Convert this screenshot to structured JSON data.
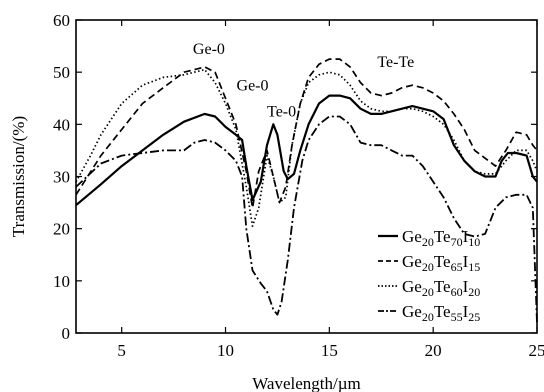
{
  "chart_data": {
    "type": "line",
    "xlabel": "Wavelength/µm",
    "ylabel": "Transmission/(%)",
    "xlim": [
      2.8,
      25
    ],
    "ylim": [
      0,
      60
    ],
    "xticks": [
      5,
      10,
      15,
      20,
      25
    ],
    "yticks": [
      0,
      10,
      20,
      30,
      40,
      50,
      60
    ],
    "grid": false,
    "legend_position": "bottom-right",
    "annotations": [
      {
        "text": "Ge-0",
        "x": 9.2,
        "y": 53.5
      },
      {
        "text": "Ge-0",
        "x": 11.3,
        "y": 46.5
      },
      {
        "text": "Te-0",
        "x": 12.7,
        "y": 41.5
      },
      {
        "text": "Te-Te",
        "x": 18.2,
        "y": 51.0
      }
    ],
    "series": [
      {
        "name": "Ge20Te70I10",
        "legend": {
          "p1": "Ge",
          "s1": "20",
          "p2": "Te",
          "s2": "70",
          "p3": "I",
          "s3": "10"
        },
        "style": "solid",
        "x": [
          2.8,
          4,
          5,
          6,
          7,
          8,
          9,
          9.5,
          10,
          10.5,
          10.8,
          11,
          11.3,
          11.7,
          12,
          12.3,
          12.5,
          12.8,
          13,
          13.3,
          13.6,
          14,
          14.5,
          15,
          15.5,
          16,
          16.5,
          17,
          17.5,
          18,
          18.5,
          19,
          19.5,
          20,
          20.5,
          21,
          21.5,
          22,
          22.5,
          23,
          23.3,
          23.6,
          24,
          24.5,
          24.8,
          25
        ],
        "values": [
          24.5,
          28.5,
          32,
          35,
          38,
          40.5,
          42,
          41.5,
          39.5,
          38,
          37,
          32,
          25.5,
          29,
          36,
          40,
          38,
          31,
          29.5,
          30.5,
          35,
          40,
          44,
          45.5,
          45.5,
          45,
          43,
          42,
          42,
          42.5,
          43,
          43.5,
          43,
          42.5,
          41,
          36,
          33,
          31,
          30,
          30,
          33,
          34.5,
          34.5,
          34,
          30,
          29
        ]
      },
      {
        "name": "Ge20Te65I15",
        "legend": {
          "p1": "Ge",
          "s1": "20",
          "p2": "Te",
          "s2": "65",
          "p3": "I",
          "s3": "15"
        },
        "style": "dashed",
        "x": [
          2.8,
          4,
          5,
          6,
          7,
          8,
          8.5,
          9,
          9.5,
          10,
          10.5,
          11,
          11.3,
          11.6,
          12,
          12.3,
          12.6,
          12.9,
          13.2,
          13.6,
          14,
          14.5,
          15,
          15.5,
          16,
          16.5,
          17,
          17.5,
          18,
          18.5,
          19,
          19.5,
          20,
          20.5,
          21,
          21.5,
          22,
          22.5,
          23,
          23.5,
          24,
          24.5,
          24.8,
          25
        ],
        "values": [
          26.5,
          34,
          39,
          44,
          47,
          50,
          50.5,
          51,
          50,
          45,
          40,
          31,
          24,
          31,
          35,
          30,
          25,
          28,
          36,
          44,
          49,
          51.5,
          52.5,
          52.5,
          51,
          48,
          46,
          45.5,
          46,
          47,
          47.5,
          47,
          46,
          44.5,
          42,
          39,
          35,
          33.5,
          32,
          35,
          38.5,
          38,
          36,
          35
        ]
      },
      {
        "name": "Ge20Te60I20",
        "legend": {
          "p1": "Ge",
          "s1": "20",
          "p2": "Te",
          "s2": "60",
          "p3": "I",
          "s3": "20"
        },
        "style": "dotted",
        "x": [
          2.8,
          3.5,
          4,
          5,
          6,
          7,
          8,
          9,
          9.5,
          10,
          10.5,
          11,
          11.3,
          11.6,
          12,
          12.3,
          12.6,
          12.9,
          13.2,
          13.6,
          14,
          14.5,
          15,
          15.5,
          16,
          16.5,
          17,
          17.5,
          18,
          18.5,
          19,
          19.5,
          20,
          20.5,
          21,
          21.5,
          22,
          22.5,
          23,
          23.5,
          24,
          24.5,
          24.8,
          25
        ],
        "values": [
          29,
          34,
          38,
          44,
          47.5,
          49,
          49.5,
          50.5,
          48,
          44,
          39,
          28,
          20.5,
          24,
          34,
          30,
          25,
          26,
          36,
          44,
          48,
          49.5,
          50,
          49.5,
          47.5,
          44.5,
          43,
          42.5,
          42.5,
          43,
          43,
          42.5,
          41.5,
          40,
          37,
          33,
          31,
          30.5,
          30.5,
          33,
          35,
          35,
          33,
          31
        ]
      },
      {
        "name": "Ge20Te55I25",
        "legend": {
          "p1": "Ge",
          "s1": "20",
          "p2": "Te",
          "s2": "55",
          "p3": "I",
          "s3": "25"
        },
        "style": "dashdot",
        "x": [
          2.8,
          4,
          5,
          6,
          7,
          8,
          8.5,
          9,
          9.5,
          10,
          10.5,
          10.8,
          11,
          11.3,
          11.7,
          12,
          12.3,
          12.5,
          12.7,
          13,
          13.3,
          13.7,
          14,
          14.5,
          15,
          15.5,
          16,
          16.5,
          17,
          17.5,
          18,
          18.5,
          19,
          19.5,
          20,
          20.5,
          21,
          21.5,
          22,
          22.5,
          23,
          23.5,
          24,
          24.5,
          24.8,
          25
        ],
        "values": [
          28,
          32.5,
          34,
          34.5,
          35,
          35,
          36.5,
          37,
          36.5,
          35,
          33,
          30,
          20,
          12,
          9.5,
          8,
          4.5,
          3.5,
          6,
          14,
          24,
          33,
          37,
          40,
          41.5,
          41.5,
          40,
          36.5,
          36,
          36,
          35,
          34,
          34,
          32,
          29,
          26,
          22,
          19,
          18.5,
          19,
          24,
          26,
          26.5,
          26.5,
          24,
          2
        ]
      }
    ]
  }
}
